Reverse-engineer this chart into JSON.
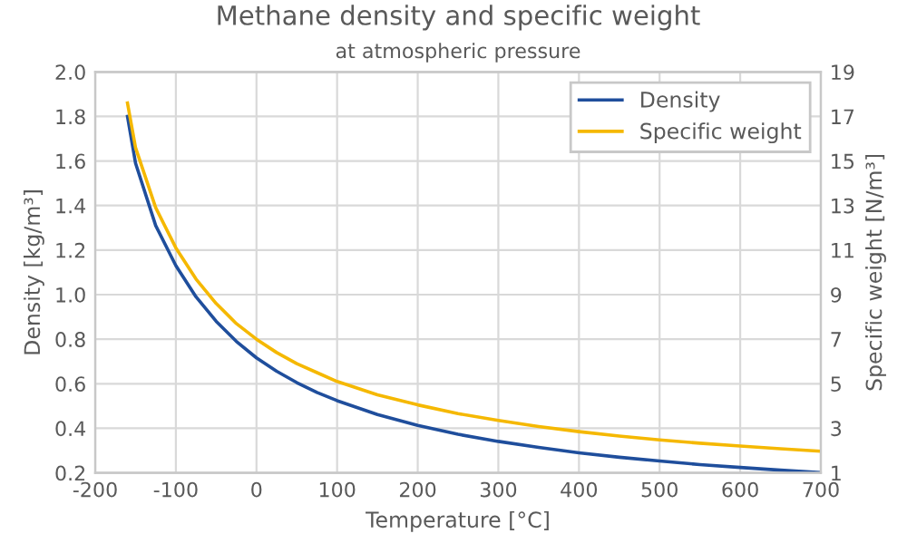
{
  "chart_data": {
    "type": "line",
    "title": "Methane density and specific weight",
    "subtitle": "at atmospheric pressure",
    "xlabel": "Temperature [°C]",
    "ylabel": "Density [kg/m³]",
    "y2label": "Specific weight [N/m³]",
    "x": [
      -160,
      -150,
      -125,
      -100,
      -75,
      -50,
      -25,
      0,
      25,
      50,
      75,
      100,
      150,
      200,
      250,
      300,
      350,
      400,
      450,
      500,
      550,
      600,
      650,
      700
    ],
    "series": [
      {
        "name": "Density",
        "color": "#1f4e9c",
        "values": [
          1.8,
          1.59,
          1.31,
          1.13,
          0.99,
          0.88,
          0.79,
          0.716,
          0.656,
          0.605,
          0.561,
          0.524,
          0.462,
          0.413,
          0.373,
          0.341,
          0.314,
          0.29,
          0.27,
          0.253,
          0.237,
          0.224,
          0.212,
          0.201
        ]
      },
      {
        "name": "Specific weight",
        "color": "#f5b800",
        "axis": "y2",
        "values": [
          17.6,
          15.6,
          12.9,
          11.1,
          9.7,
          8.6,
          7.7,
          7.0,
          6.4,
          5.9,
          5.5,
          5.1,
          4.5,
          4.05,
          3.66,
          3.35,
          3.08,
          2.85,
          2.65,
          2.48,
          2.33,
          2.2,
          2.08,
          1.97
        ]
      }
    ],
    "xlim": [
      -200,
      700
    ],
    "xticks": [
      -200,
      -100,
      0,
      100,
      200,
      300,
      400,
      500,
      600,
      700
    ],
    "ylim": [
      0.2,
      2.0
    ],
    "yticks": [
      {
        "value": 0.2,
        "label": "0.2"
      },
      {
        "value": 0.4,
        "label": "0.4"
      },
      {
        "value": 0.6,
        "label": "0.6"
      },
      {
        "value": 0.8,
        "label": "0.8"
      },
      {
        "value": 1.0,
        "label": "1.0"
      },
      {
        "value": 1.2,
        "label": "1.2"
      },
      {
        "value": 1.4,
        "label": "1.4"
      },
      {
        "value": 1.6,
        "label": "1.6"
      },
      {
        "value": 1.8,
        "label": "1.8"
      },
      {
        "value": 2.0,
        "label": "2.0"
      }
    ],
    "y2lim": [
      1,
      19
    ],
    "y2ticks": [
      1,
      3,
      5,
      7,
      9,
      11,
      13,
      15,
      17,
      19
    ],
    "grid": true,
    "legend": "top right",
    "marker": "none",
    "line_style": "solid"
  }
}
